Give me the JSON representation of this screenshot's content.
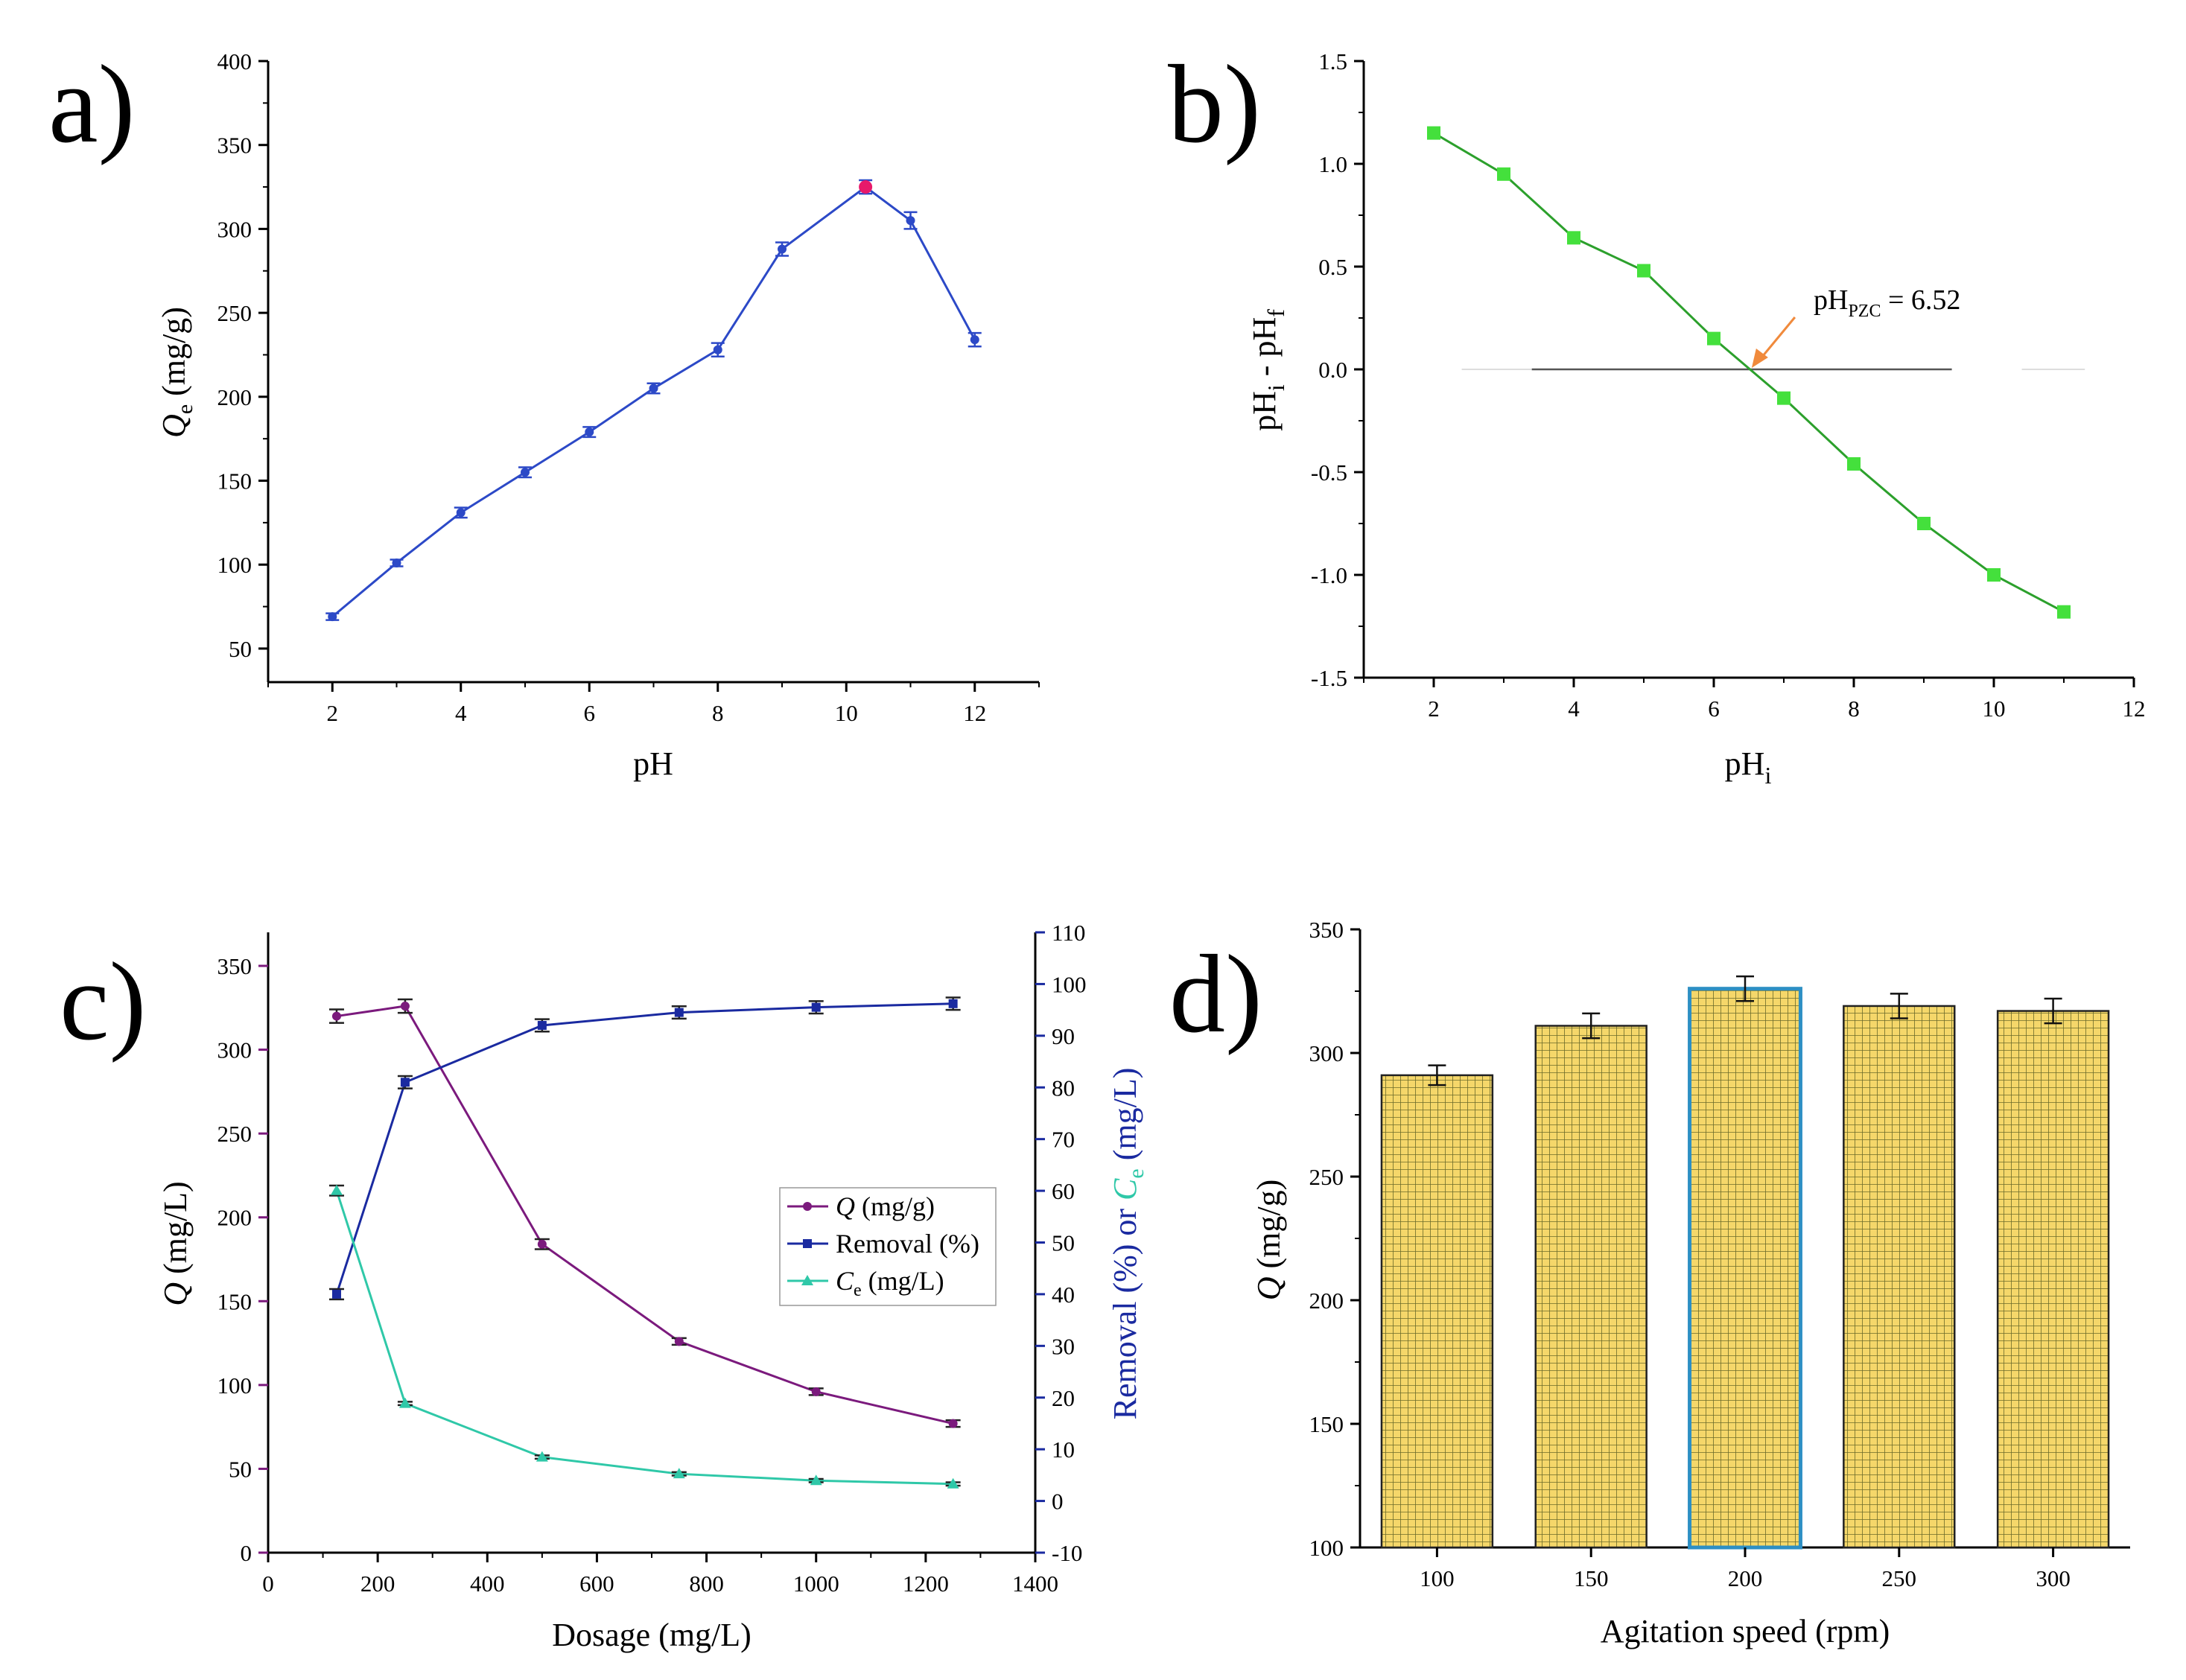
{
  "chart_data": [
    {
      "panel": "a)",
      "type": "line",
      "xlabel": "pH",
      "ylabel": "Qe (mg/g)",
      "ylabel_main": "Q",
      "ylabel_sub": "e",
      "ylabel_unit": " (mg/g)",
      "xlim": [
        1,
        13
      ],
      "ylim": [
        30,
        400
      ],
      "xticks": [
        2,
        4,
        6,
        8,
        10,
        12
      ],
      "yticks": [
        50,
        100,
        150,
        200,
        250,
        300,
        350,
        400
      ],
      "series": [
        {
          "name": "Qe",
          "color": "#2c49c7",
          "x": [
            2,
            3,
            4,
            5,
            6,
            7,
            8,
            9,
            10.3,
            11,
            12
          ],
          "y": [
            69,
            101,
            131,
            155,
            179,
            205,
            228,
            288,
            325,
            305,
            234
          ],
          "err": [
            2,
            2,
            3,
            3,
            3,
            3,
            4,
            4,
            4,
            5,
            4
          ],
          "highlight_index": 8,
          "highlight_color": "#e8196a"
        }
      ]
    },
    {
      "panel": "b)",
      "type": "line",
      "xlabel": "pH",
      "xlabel_sub": "i",
      "ylabel": "pHi - pHf",
      "ylabel_parts": [
        "pH",
        "i",
        " - pH",
        "f"
      ],
      "xlim": [
        1,
        12
      ],
      "ylim": [
        -1.5,
        1.5
      ],
      "xticks": [
        2,
        4,
        6,
        8,
        10,
        12
      ],
      "yticks": [
        -1.5,
        -1.0,
        -0.5,
        0.0,
        0.5,
        1.0,
        1.5
      ],
      "ytick_labels": [
        "-1.5",
        "-1.0",
        "-0.5",
        "0.0",
        "0.5",
        "1.0",
        "1.5"
      ],
      "series": [
        {
          "name": "pHi - pHf",
          "color": "#2ca02c",
          "marker_color": "#44e03c",
          "x": [
            2,
            3,
            4,
            5,
            6,
            7,
            8,
            9,
            10,
            11
          ],
          "y": [
            1.15,
            0.95,
            0.64,
            0.48,
            0.15,
            -0.14,
            -0.46,
            -0.75,
            -1.0,
            -1.18
          ]
        }
      ],
      "zero_line_color": "#555555",
      "annotation": {
        "text_main": "pH",
        "text_sub": "PZC",
        "text_value": " = 6.52",
        "pzc": 6.52,
        "arrow_color": "#f08a3c"
      }
    },
    {
      "panel": "c)",
      "type": "line",
      "xlabel": "Dosage (mg/L)",
      "ylabel_left": "Q (mg/L)",
      "ylabel_left_main": "Q",
      "ylabel_left_unit": " (mg/L)",
      "ylabel_right_text": "Removal (%) or ",
      "ylabel_right_ce": "C",
      "ylabel_right_ce_sub": "e",
      "ylabel_right_unit": " (mg/L)",
      "left_color": "#7b1a7d",
      "right_color": "#1a2aa0",
      "ce_color": "#2fc8a8",
      "xlim": [
        0,
        1400
      ],
      "ylim_left": [
        0,
        370
      ],
      "ylim_right": [
        -10,
        110
      ],
      "xticks": [
        0,
        200,
        400,
        600,
        800,
        1000,
        1200,
        1400
      ],
      "yticks_left": [
        0,
        50,
        100,
        150,
        200,
        250,
        300,
        350
      ],
      "yticks_right": [
        -10,
        0,
        10,
        20,
        30,
        40,
        50,
        60,
        70,
        80,
        90,
        100,
        110
      ],
      "series": [
        {
          "name": "Q (mg/g)",
          "legend_main": "Q",
          "legend_unit": " (mg/g)",
          "axis": "left",
          "color": "#7b1a7d",
          "marker": "circle",
          "x": [
            125,
            250,
            500,
            750,
            1000,
            1250
          ],
          "y": [
            320,
            326,
            184,
            126,
            96,
            77
          ],
          "err": [
            4,
            4,
            3,
            2,
            2,
            2
          ]
        },
        {
          "name": "Removal (%)",
          "legend_main": "Removal (%)",
          "legend_unit": "",
          "axis": "right",
          "color": "#1a2aa0",
          "marker": "square",
          "x": [
            125,
            250,
            500,
            750,
            1000,
            1250
          ],
          "y": [
            40,
            81,
            92,
            94.5,
            95.5,
            96.2
          ],
          "err": [
            1,
            1.2,
            1.2,
            1.2,
            1.2,
            1.2
          ]
        },
        {
          "name": "Ce (mg/L)",
          "legend_main": "C",
          "legend_sub": "e",
          "legend_unit": " (mg/L)",
          "axis": "left",
          "color": "#2fc8a8",
          "marker": "triangle",
          "x": [
            125,
            250,
            500,
            750,
            1000,
            1250
          ],
          "y": [
            216,
            89,
            57,
            47,
            43,
            41
          ],
          "err": [
            3,
            1,
            1,
            1,
            1,
            1
          ]
        }
      ],
      "legend_position": "center-right"
    },
    {
      "panel": "d)",
      "type": "bar",
      "xlabel": "Agitation speed (rpm)",
      "ylabel": "Q (mg/g)",
      "ylabel_main": "Q",
      "ylabel_unit": " (mg/g)",
      "categories": [
        "100",
        "150",
        "200",
        "250",
        "300"
      ],
      "values": [
        291,
        311,
        326,
        319,
        317
      ],
      "err": [
        4,
        5,
        5,
        5,
        5
      ],
      "ylim": [
        100,
        350
      ],
      "yticks": [
        100,
        150,
        200,
        250,
        300,
        350
      ],
      "bar_color": "#f5d76a",
      "grid_color": "#6b6b2a",
      "highlight_index": 2,
      "highlight_edge": "#2d8fc4"
    }
  ]
}
